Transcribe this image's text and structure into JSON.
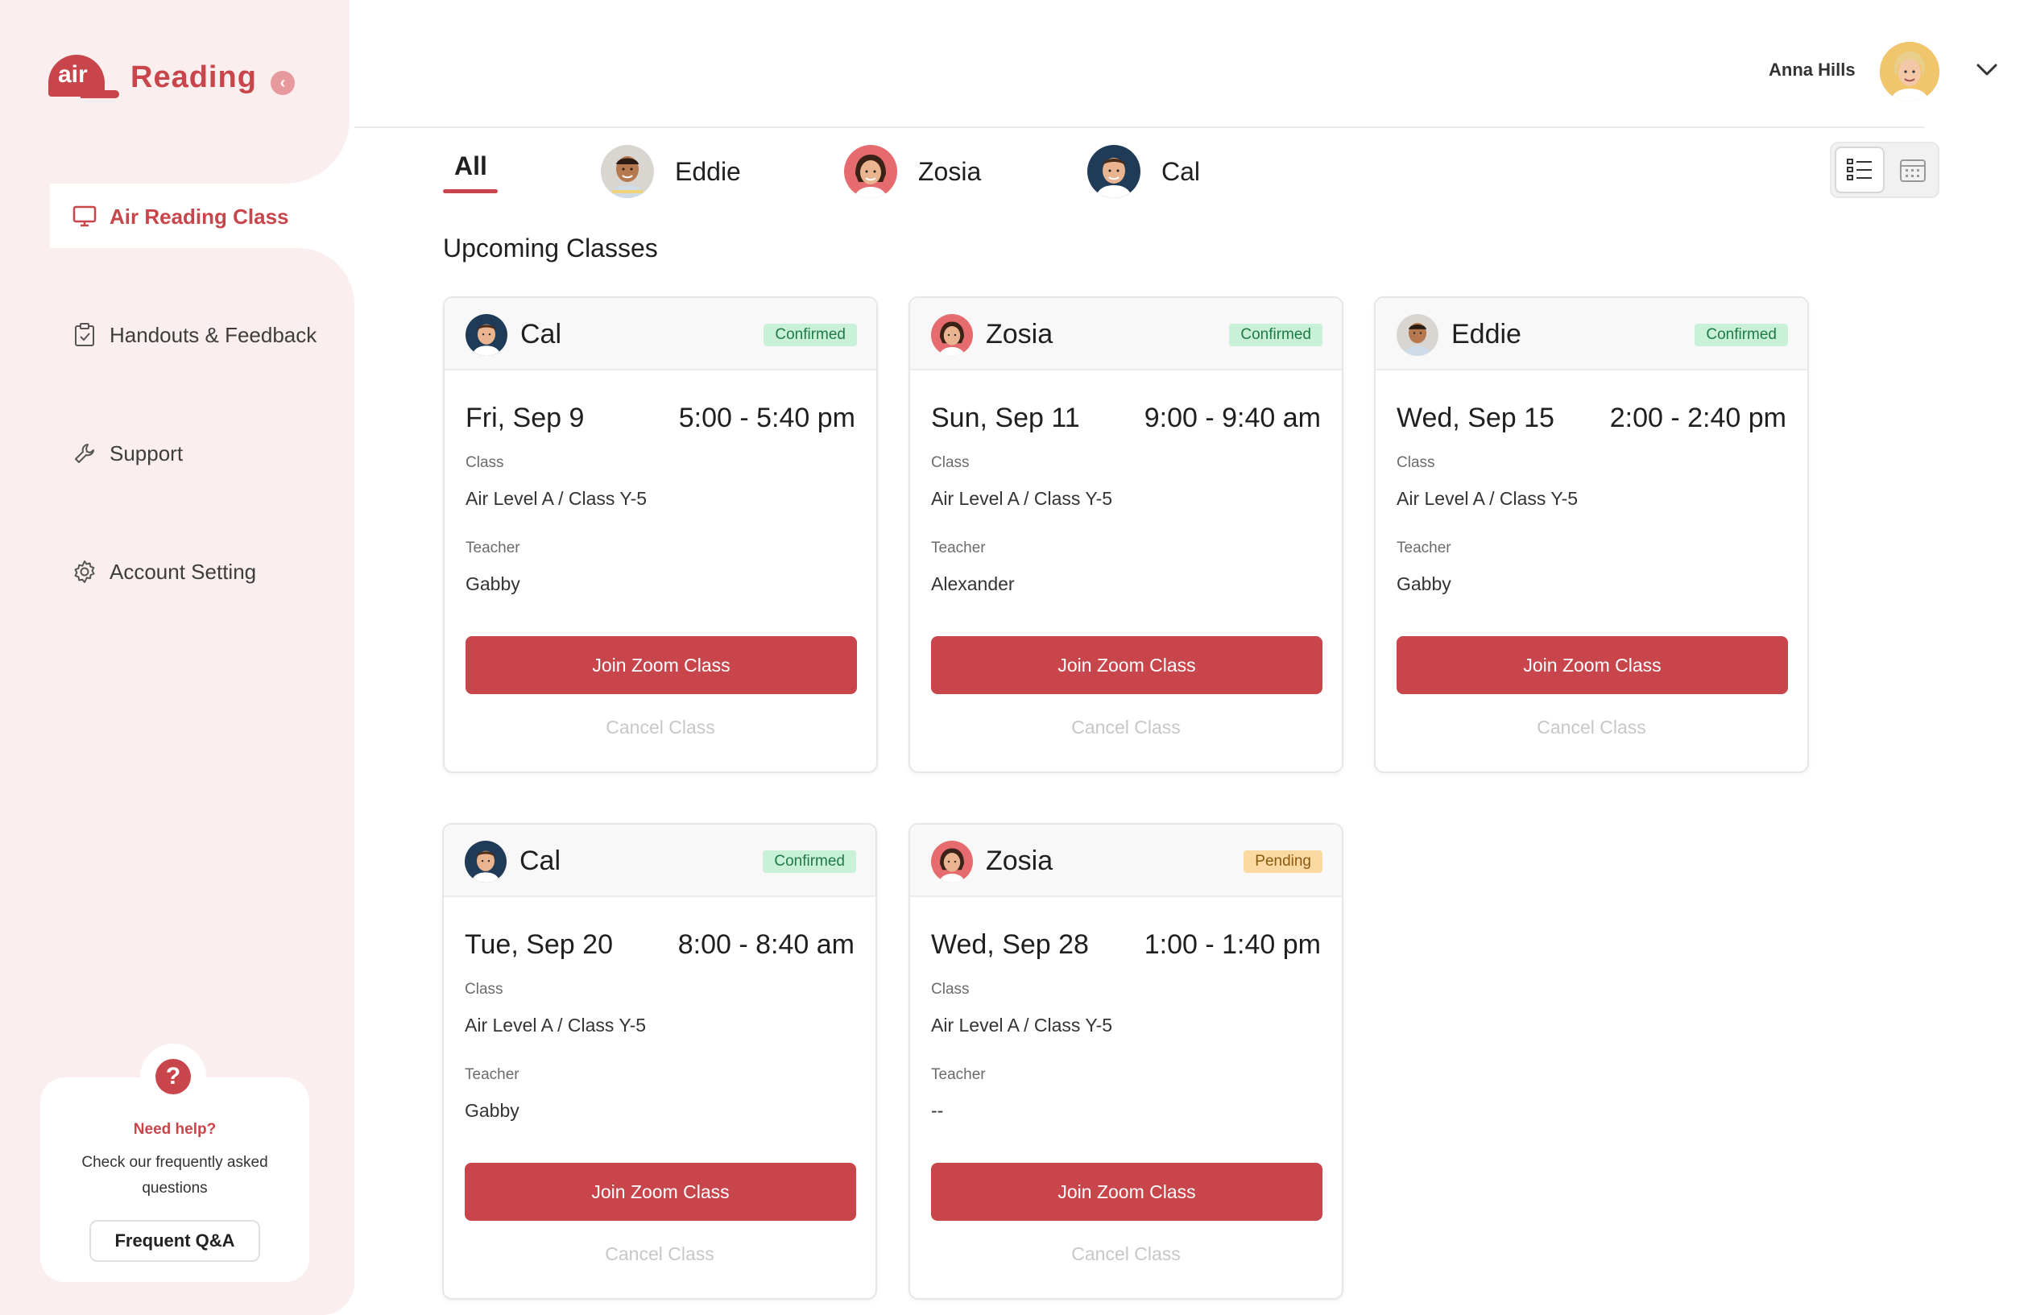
{
  "brand": {
    "cap_text": "air",
    "name": "Reading",
    "collapse_glyph": "‹"
  },
  "sidebar": {
    "items": [
      {
        "label": "Air Reading Class",
        "icon": "monitor-icon",
        "active": true
      },
      {
        "label": "Handouts & Feedback",
        "icon": "clipboard-icon",
        "active": false
      },
      {
        "label": "Support",
        "icon": "wrench-icon",
        "active": false
      },
      {
        "label": "Account Setting",
        "icon": "gear-icon",
        "active": false
      }
    ],
    "help": {
      "icon_glyph": "?",
      "title": "Need help?",
      "text": "Check our frequently asked questions",
      "button": "Frequent Q&A"
    }
  },
  "header": {
    "user_name": "Anna Hills"
  },
  "tabs": [
    {
      "label": "All",
      "active": true
    },
    {
      "label": "Eddie"
    },
    {
      "label": "Zosia"
    },
    {
      "label": "Cal"
    }
  ],
  "section_title": "Upcoming Classes",
  "cards": [
    {
      "name": "Cal",
      "status": "Confirmed",
      "date": "Fri, Sep 9",
      "time": "5:00 - 5:40 pm",
      "class_label": "Class",
      "class": "Air Level A / Class Y-5",
      "teacher_label": "Teacher",
      "teacher": "Gabby",
      "join": "Join Zoom Class",
      "cancel": "Cancel Class"
    },
    {
      "name": "Zosia",
      "status": "Confirmed",
      "date": "Sun, Sep 11",
      "time": "9:00 - 9:40 am",
      "class_label": "Class",
      "class": "Air Level A / Class Y-5",
      "teacher_label": "Teacher",
      "teacher": "Alexander",
      "join": "Join Zoom Class",
      "cancel": "Cancel Class"
    },
    {
      "name": "Eddie",
      "status": "Confirmed",
      "date": "Wed, Sep 15",
      "time": "2:00 - 2:40 pm",
      "class_label": "Class",
      "class": "Air Level A / Class Y-5",
      "teacher_label": "Teacher",
      "teacher": "Gabby",
      "join": "Join Zoom Class",
      "cancel": "Cancel Class"
    },
    {
      "name": "Cal",
      "status": "Confirmed",
      "date": "Tue, Sep 20",
      "time": "8:00 - 8:40 am",
      "class_label": "Class",
      "class": "Air Level A / Class Y-5",
      "teacher_label": "Teacher",
      "teacher": "Gabby",
      "join": "Join Zoom Class",
      "cancel": "Cancel Class"
    },
    {
      "name": "Zosia",
      "status": "Pending",
      "date": "Wed, Sep 28",
      "time": "1:00 - 1:40 pm",
      "class_label": "Class",
      "class": "Air Level A / Class Y-5",
      "teacher_label": "Teacher",
      "teacher": "--",
      "join": "Join Zoom Class",
      "cancel": "Cancel Class"
    }
  ],
  "colors": {
    "accent": "#c8464b",
    "sidebar_bg": "#fbeeee",
    "confirmed_bg": "#c9f1d8",
    "pending_bg": "#fbd9a3"
  }
}
